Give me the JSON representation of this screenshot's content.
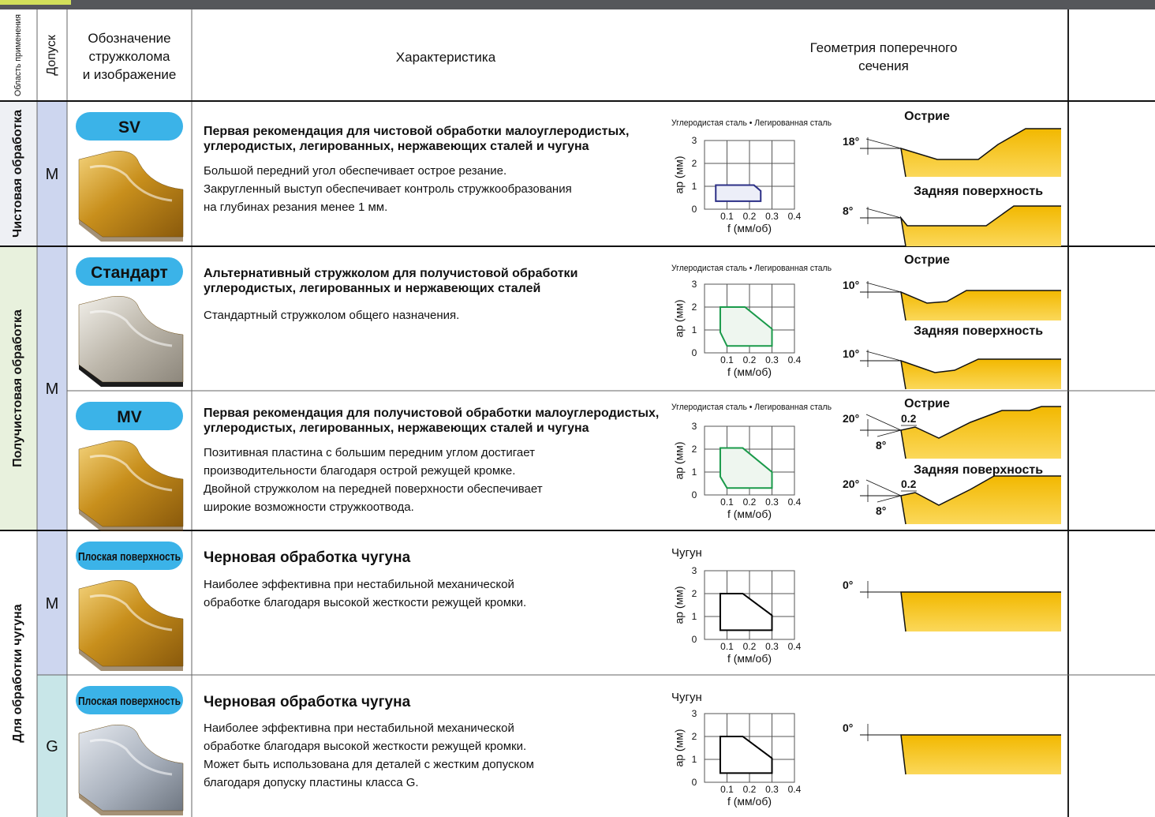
{
  "header": {
    "area": "Область применения",
    "tolerance": "Допуск",
    "breaker_lines": [
      "Обозначение",
      "стружколома",
      "и изображение"
    ],
    "characteristic": "Характеристика",
    "geometry_lines": [
      "Геометрия поперечного",
      "сечения"
    ]
  },
  "groups": [
    "Чистовая обработка",
    "Получистовая обработка",
    "Для обработки чугуна"
  ],
  "tolerances": [
    "M",
    "M",
    "M",
    "G"
  ],
  "rows": [
    {
      "badge": "SV",
      "title_lines": [
        "Первая рекомендация для чистовой обработки малоуглеродистых,",
        "углеродистых, легированных, нержавеющих сталей и чугуна"
      ],
      "description_lines": [
        "Большой передний угол обеспечивает острое резание.",
        "Закругленный выступ обеспечивает контроль стружкообразования",
        "на глубинах резания менее 1 мм."
      ],
      "chart": {
        "type": "area",
        "material": "Углеродистая сталь • Легированная сталь",
        "ylabel": "ap (мм)",
        "xlabel": "f (мм/об)",
        "xlim": [
          0,
          0.4
        ],
        "ylim": [
          0,
          3
        ],
        "xticks": [
          0.1,
          0.2,
          0.3,
          0.4
        ],
        "yticks": [
          0,
          1,
          2,
          3
        ],
        "color": "#2b2f86",
        "fill": "#eceef8",
        "region": {
          "f": [
            0.05,
            0.05,
            0.22,
            0.25,
            0.25
          ],
          "ap": [
            0.35,
            1.05,
            1.05,
            0.8,
            0.35
          ]
        }
      },
      "geometry": [
        {
          "label": "Острие",
          "angles": [
            "18°"
          ]
        },
        {
          "label": "Задняя поверхность",
          "angles": [
            "8°"
          ]
        }
      ]
    },
    {
      "badge": "Стандарт",
      "title_lines": [
        "Альтернативный стружколом для получистовой обработки",
        "углеродистых, легированных и нержавеющих сталей"
      ],
      "description_lines": [
        "Стандартный стружколом общего назначения."
      ],
      "chart": {
        "type": "area",
        "material": "Углеродистая сталь • Легированная сталь",
        "ylabel": "ap (мм)",
        "xlabel": "f (мм/об)",
        "xlim": [
          0,
          0.4
        ],
        "ylim": [
          0,
          3
        ],
        "xticks": [
          0.1,
          0.2,
          0.3,
          0.4
        ],
        "yticks": [
          0,
          1,
          2,
          3
        ],
        "color": "#1a9a4a",
        "fill": "#eef6ef",
        "region": {
          "f": [
            0.07,
            0.18,
            0.3,
            0.3,
            0.1,
            0.07
          ],
          "ap": [
            2.0,
            2.0,
            1.05,
            0.3,
            0.3,
            0.9
          ]
        }
      },
      "geometry": [
        {
          "label": "Острие",
          "angles": [
            "10°"
          ]
        },
        {
          "label": "Задняя поверхность",
          "angles": [
            "10°"
          ]
        }
      ]
    },
    {
      "badge": "MV",
      "title_lines": [
        "Первая рекомендация для получистовой обработки малоуглеродистых,",
        "углеродистых, легированных, нержавеющих сталей и чугуна"
      ],
      "description_lines": [
        "Позитивная пластина с большим передним углом достигает",
        "производительности благодаря острой режущей кромке.",
        "Двойной стружколом на передней поверхности обеспечивает",
        "широкие возможности стружкоотвода."
      ],
      "chart": {
        "type": "area",
        "material": "Углеродистая сталь • Легированная сталь",
        "ylabel": "ap (мм)",
        "xlabel": "f (мм/об)",
        "xlim": [
          0,
          0.4
        ],
        "ylim": [
          0,
          3
        ],
        "xticks": [
          0.1,
          0.2,
          0.3,
          0.4
        ],
        "yticks": [
          0,
          1,
          2,
          3
        ],
        "color": "#1a9a4a",
        "fill": "#eef6ef",
        "region": {
          "f": [
            0.07,
            0.17,
            0.3,
            0.3,
            0.1,
            0.07
          ],
          "ap": [
            2.05,
            2.05,
            1.0,
            0.3,
            0.3,
            0.8
          ]
        }
      },
      "geometry": [
        {
          "label": "Острие",
          "angles": [
            "20°",
            "8°"
          ],
          "land": "0.2"
        },
        {
          "label": "Задняя поверхность",
          "angles": [
            "20°",
            "8°"
          ],
          "land": "0.2"
        }
      ]
    },
    {
      "badge": "Плоская поверхность",
      "title_lines": [
        "Черновая обработка чугуна"
      ],
      "description_lines": [
        "Наиболее эффективна при нестабильной механической",
        "обработке благодаря высокой жесткости режущей кромки."
      ],
      "chart": {
        "type": "area",
        "material": "Чугун",
        "ylabel": "ap (мм)",
        "xlabel": "f (мм/об)",
        "xlim": [
          0,
          0.4
        ],
        "ylim": [
          0,
          3
        ],
        "xticks": [
          0.1,
          0.2,
          0.3,
          0.4
        ],
        "yticks": [
          0,
          1,
          2,
          3
        ],
        "color": "#000000",
        "fill": "#ffffff",
        "region": {
          "f": [
            0.07,
            0.17,
            0.3,
            0.3,
            0.07
          ],
          "ap": [
            2.0,
            2.0,
            1.05,
            0.4,
            0.4
          ]
        }
      },
      "geometry": [
        {
          "angles": [
            "0°"
          ]
        }
      ]
    },
    {
      "badge": "Плоская поверхность",
      "title_lines": [
        "Черновая обработка чугуна"
      ],
      "description_lines": [
        "Наиболее эффективна при нестабильной механической",
        "обработке благодаря высокой жесткости режущей кромки.",
        "Может быть использована для деталей с жестким допуском",
        "благодаря допуску пластины класса G."
      ],
      "chart": {
        "type": "area",
        "material": "Чугун",
        "ylabel": "ap (мм)",
        "xlabel": "f (мм/об)",
        "xlim": [
          0,
          0.4
        ],
        "ylim": [
          0,
          3
        ],
        "xticks": [
          0.1,
          0.2,
          0.3,
          0.4
        ],
        "yticks": [
          0,
          1,
          2,
          3
        ],
        "color": "#000000",
        "fill": "#ffffff",
        "region": {
          "f": [
            0.07,
            0.17,
            0.3,
            0.3,
            0.07
          ],
          "ap": [
            2.0,
            2.0,
            1.05,
            0.4,
            0.4
          ]
        }
      },
      "geometry": [
        {
          "angles": [
            "0°"
          ]
        }
      ]
    }
  ]
}
